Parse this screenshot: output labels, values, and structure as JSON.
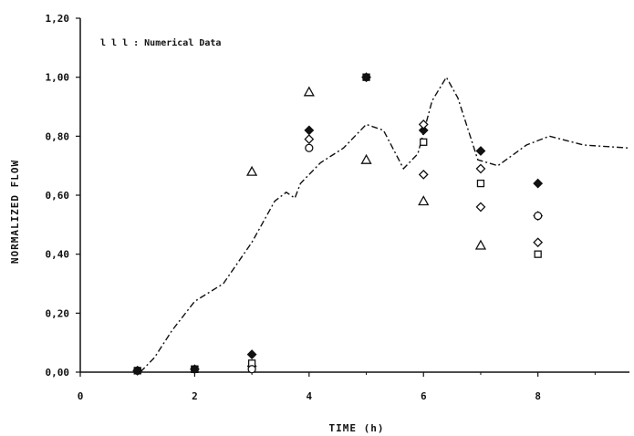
{
  "chart_data": {
    "type": "scatter",
    "title": "",
    "xlabel": "TIME (h)",
    "ylabel": "NORMALIZED FLOW",
    "annotation": "l l l : Numerical Data",
    "xlim": [
      0,
      9.6
    ],
    "ylim": [
      0,
      1.2
    ],
    "x_ticks": [
      0,
      2,
      4,
      6,
      8
    ],
    "x_tick_labels": [
      "0",
      "2",
      "4",
      "6",
      "8"
    ],
    "y_ticks": [
      0,
      0.2,
      0.4,
      0.6,
      0.8,
      1.0,
      1.2
    ],
    "y_tick_labels": [
      "0,00",
      "0,20",
      "0,40",
      "0,60",
      "0,80",
      "1,00",
      "1,20"
    ],
    "series": [
      {
        "marker": "diamond-filled",
        "points": [
          [
            1,
            0.005
          ],
          [
            2,
            0.01
          ],
          [
            3,
            0.06
          ],
          [
            4,
            0.82
          ],
          [
            5,
            1.0
          ],
          [
            6,
            0.82
          ],
          [
            7,
            0.75
          ],
          [
            8,
            0.64
          ]
        ]
      },
      {
        "marker": "diamond-open",
        "points": [
          [
            1,
            0.005
          ],
          [
            3,
            0.02
          ],
          [
            4,
            0.79
          ],
          [
            6,
            0.84
          ],
          [
            6,
            0.67
          ],
          [
            7,
            0.69
          ],
          [
            7,
            0.56
          ],
          [
            8,
            0.53
          ],
          [
            8,
            0.44
          ]
        ]
      },
      {
        "marker": "square-open",
        "points": [
          [
            1,
            0.005
          ],
          [
            2,
            0.01
          ],
          [
            3,
            0.03
          ],
          [
            6,
            0.78
          ],
          [
            7,
            0.64
          ],
          [
            8,
            0.4
          ]
        ]
      },
      {
        "marker": "triangle-open",
        "points": [
          [
            3,
            0.68
          ],
          [
            4,
            0.95
          ],
          [
            5,
            0.72
          ],
          [
            6,
            0.58
          ],
          [
            7,
            0.43
          ]
        ]
      },
      {
        "marker": "circle-open",
        "points": [
          [
            3,
            0.01
          ],
          [
            4,
            0.76
          ],
          [
            8,
            0.53
          ]
        ]
      },
      {
        "marker": "square-filled",
        "points": [
          [
            2,
            0.01
          ],
          [
            5,
            1.0
          ]
        ]
      },
      {
        "marker": "circle-filled",
        "points": [
          [
            1,
            0.005
          ]
        ]
      },
      {
        "marker": "dash-dot-line",
        "line": [
          [
            1.05,
            0.0
          ],
          [
            1.3,
            0.05
          ],
          [
            1.6,
            0.14
          ],
          [
            2.0,
            0.24
          ],
          [
            2.5,
            0.3
          ],
          [
            3.0,
            0.44
          ],
          [
            3.4,
            0.58
          ],
          [
            3.6,
            0.61
          ],
          [
            3.75,
            0.59
          ],
          [
            3.85,
            0.64
          ],
          [
            4.2,
            0.71
          ],
          [
            4.6,
            0.76
          ],
          [
            5.0,
            0.84
          ],
          [
            5.3,
            0.82
          ],
          [
            5.65,
            0.69
          ],
          [
            5.9,
            0.74
          ],
          [
            6.15,
            0.92
          ],
          [
            6.4,
            1.0
          ],
          [
            6.6,
            0.93
          ],
          [
            6.95,
            0.72
          ],
          [
            7.3,
            0.7
          ],
          [
            7.8,
            0.77
          ],
          [
            8.2,
            0.8
          ],
          [
            8.8,
            0.77
          ],
          [
            9.6,
            0.76
          ]
        ]
      }
    ],
    "grid": false,
    "legend": "none"
  }
}
